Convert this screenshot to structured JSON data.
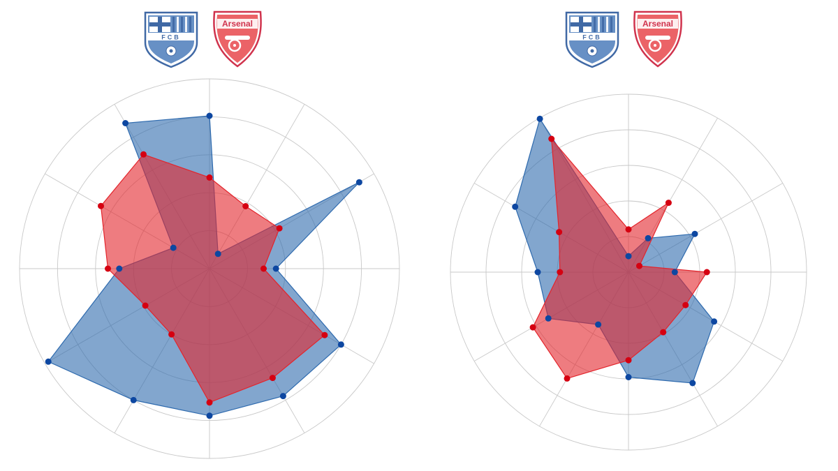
{
  "badges": {
    "barcelona": {
      "initials": "FCB",
      "primary": "#3a6fb5",
      "dark": "#1f4f96",
      "accent": "#e3a32c"
    },
    "arsenal": {
      "text": "Arsenal",
      "primary": "#e8484d",
      "dark": "#c8102e"
    }
  },
  "colors": {
    "barcelona_fill": "#2e6aae",
    "barcelona_point": "#0d47a1",
    "arsenal_fill": "#e3242b",
    "arsenal_point": "#d50011",
    "grid": "#c8c8c8"
  },
  "chart_data": [
    {
      "type": "radar",
      "rings": 5,
      "spokes": 12,
      "max_value": 1.0,
      "grid": true,
      "series": [
        {
          "team": "barcelona",
          "values": [
            0.805,
            0.09,
            0.91,
            0.35,
            0.8,
            0.775,
            0.775,
            0.8,
            0.98,
            0.475,
            0.22,
            0.885
          ]
        },
        {
          "team": "arsenal",
          "values": [
            0.48,
            0.38,
            0.425,
            0.285,
            0.7,
            0.665,
            0.705,
            0.4,
            0.39,
            0.535,
            0.66,
            0.695
          ]
        }
      ]
    },
    {
      "type": "radar",
      "rings": 5,
      "spokes": 12,
      "max_value": 1.0,
      "grid": true,
      "series": [
        {
          "team": "barcelona",
          "values": [
            0.09,
            0.22,
            0.43,
            0.26,
            0.555,
            0.72,
            0.59,
            0.34,
            0.52,
            0.51,
            0.735,
            0.995
          ]
        },
        {
          "team": "arsenal",
          "values": [
            0.24,
            0.45,
            0.07,
            0.44,
            0.37,
            0.39,
            0.495,
            0.69,
            0.62,
            0.385,
            0.45,
            0.865
          ]
        }
      ]
    }
  ]
}
